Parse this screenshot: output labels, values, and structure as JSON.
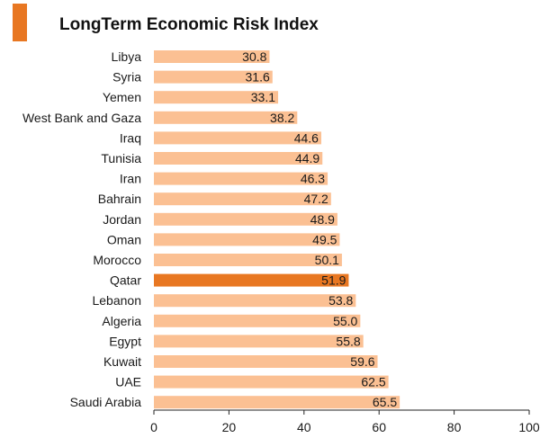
{
  "title": "LongTerm Economic Risk Index",
  "colors": {
    "accent": "#E87722",
    "bar": "#FBC093",
    "highlight_bar": "#E87722",
    "text": "#1a1a1a",
    "axis": "#222222"
  },
  "chart_data": {
    "type": "bar",
    "orientation": "horizontal",
    "title": "LongTerm Economic Risk Index",
    "categories": [
      "Libya",
      "Syria",
      "Yemen",
      "West Bank and Gaza",
      "Iraq",
      "Tunisia",
      "Iran",
      "Bahrain",
      "Jordan",
      "Oman",
      "Morocco",
      "Qatar",
      "Lebanon",
      "Algeria",
      "Egypt",
      "Kuwait",
      "UAE",
      "Saudi Arabia"
    ],
    "values": [
      30.8,
      31.6,
      33.1,
      38.2,
      44.6,
      44.9,
      46.3,
      47.2,
      48.9,
      49.5,
      50.1,
      51.9,
      53.8,
      55.0,
      55.8,
      59.6,
      62.5,
      65.5
    ],
    "value_labels": [
      "30.8",
      "31.6",
      "33.1",
      "38.2",
      "44.6",
      "44.9",
      "46.3",
      "47.2",
      "48.9",
      "49.5",
      "50.1",
      "51.9",
      "53.8",
      "55.0",
      "55.8",
      "59.6",
      "62.5",
      "65.5"
    ],
    "highlight": "Qatar",
    "xlim": [
      0,
      100
    ],
    "xticks": [
      0,
      20,
      40,
      60,
      80,
      100
    ],
    "xlabel": "",
    "ylabel": "",
    "grid": false,
    "legend": "none"
  }
}
